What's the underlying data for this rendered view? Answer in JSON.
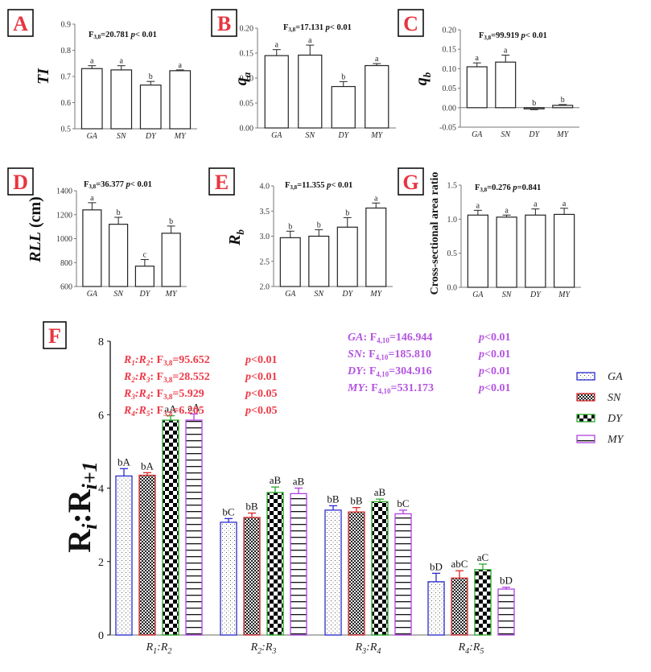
{
  "chart_data": [
    {
      "id": "A",
      "type": "bar",
      "panel_label": "A",
      "title": "F3,8=20.781  p<0.01",
      "stat": {
        "F_sub": "3,8",
        "F_value": "20.781",
        "p": "p< 0.01"
      },
      "ylabel": "TI",
      "ylabel_style": "italic",
      "categories": [
        "GA",
        "SN",
        "DY",
        "MY"
      ],
      "values": [
        0.73,
        0.725,
        0.667,
        0.722
      ],
      "errors": [
        0.011,
        0.016,
        0.014,
        0.003
      ],
      "letters": [
        "a",
        "a",
        "b",
        "a"
      ],
      "ylim": [
        0.5,
        0.9
      ],
      "yticks": [
        0.5,
        0.6,
        0.7,
        0.8,
        0.9
      ],
      "ytick_labels": [
        "0.5",
        "0.6",
        "0.7",
        "0.8",
        "0.9"
      ]
    },
    {
      "id": "B",
      "type": "bar",
      "panel_label": "B",
      "title": "F3,8=17.131  p<0.01",
      "stat": {
        "F_sub": "3,8",
        "F_value": "17.131",
        "p": "p< 0.01"
      },
      "ylabel": "q",
      "ylabel_sub": "a",
      "categories": [
        "GA",
        "SN",
        "DY",
        "MY"
      ],
      "values": [
        0.145,
        0.146,
        0.083,
        0.125
      ],
      "errors": [
        0.012,
        0.02,
        0.01,
        0.004
      ],
      "letters": [
        "a",
        "a",
        "b",
        "a"
      ],
      "ylim": [
        0.0,
        0.2
      ],
      "yticks": [
        0.0,
        0.05,
        0.1,
        0.15,
        0.2
      ],
      "ytick_labels": [
        "0.00",
        "0.05",
        "0.10",
        "0.15",
        "0.20"
      ]
    },
    {
      "id": "C",
      "type": "bar",
      "panel_label": "C",
      "title": "F3,8=99.919  p<0.01",
      "stat": {
        "F_sub": "3,8",
        "F_value": "99.919",
        "p": "p< 0.01"
      },
      "ylabel": "q",
      "ylabel_sub": "b",
      "categories": [
        "GA",
        "SN",
        "DY",
        "MY"
      ],
      "values": [
        0.105,
        0.117,
        -0.003,
        0.006
      ],
      "errors": [
        0.01,
        0.018,
        0.002,
        0.002
      ],
      "letters": [
        "a",
        "a",
        "b",
        "b"
      ],
      "ylim": [
        -0.05,
        0.2
      ],
      "yticks": [
        -0.05,
        0.0,
        0.05,
        0.1,
        0.15,
        0.2
      ],
      "ytick_labels": [
        "-0.05",
        "0.00",
        "0.05",
        "0.10",
        "0.15",
        "0.20"
      ]
    },
    {
      "id": "D",
      "type": "bar",
      "panel_label": "D",
      "title": "F3,8=36.377  p<0.01",
      "stat": {
        "F_sub": "3,8",
        "F_value": "36.377",
        "p": "p< 0.01"
      },
      "ylabel": "RLL (cm)",
      "categories": [
        "GA",
        "SN",
        "DY",
        "MY"
      ],
      "values": [
        1240,
        1120,
        770,
        1045
      ],
      "errors": [
        60,
        58,
        55,
        60
      ],
      "letters": [
        "a",
        "b",
        "c",
        "b"
      ],
      "ylim": [
        600,
        1400
      ],
      "yticks": [
        600,
        800,
        1000,
        1200,
        1400
      ],
      "ytick_labels": [
        "600",
        "800",
        "1000",
        "1200",
        "1400"
      ]
    },
    {
      "id": "E",
      "type": "bar",
      "panel_label": "E",
      "title": "F3,8=11.355  p<0.01",
      "stat": {
        "F_sub": "3,8",
        "F_value": "11.355",
        "p": "p< 0.01"
      },
      "ylabel": "R",
      "ylabel_sub": "b",
      "categories": [
        "GA",
        "SN",
        "DY",
        "MY"
      ],
      "values": [
        2.97,
        3.0,
        3.18,
        3.56
      ],
      "errors": [
        0.13,
        0.13,
        0.19,
        0.1
      ],
      "letters": [
        "b",
        "b",
        "b",
        "a"
      ],
      "ylim": [
        2.0,
        4.0
      ],
      "yticks": [
        2.0,
        2.5,
        3.0,
        3.5,
        4.0
      ],
      "ytick_labels": [
        "2.0",
        "2.5",
        "3.0",
        "3.5",
        "4.0"
      ]
    },
    {
      "id": "G",
      "type": "bar",
      "panel_label": "G",
      "title": "F3,8=0.276  p=0.841",
      "stat": {
        "F_sub": "3,8",
        "F_value": "0.276",
        "p": "p=0.841"
      },
      "ylabel": "Cross-sectional area ratio",
      "categories": [
        "GA",
        "SN",
        "DY",
        "MY"
      ],
      "values": [
        1.06,
        1.03,
        1.06,
        1.07
      ],
      "errors": [
        0.07,
        0.03,
        0.09,
        0.09
      ],
      "letters": [
        "a",
        "a",
        "a",
        "a"
      ],
      "ylim": [
        0.0,
        1.5
      ],
      "yticks": [
        0.0,
        0.5,
        1.0,
        1.5
      ],
      "ytick_labels": [
        "0.0",
        "0.5",
        "1.0",
        "1.5"
      ]
    },
    {
      "id": "F",
      "type": "bar",
      "panel_label": "F",
      "ylabel": "Ri:Ri+1",
      "ylim": [
        0,
        8
      ],
      "yticks": [
        0,
        2,
        4,
        6,
        8
      ],
      "ytick_labels": [
        "0",
        "2",
        "4",
        "6",
        "8"
      ],
      "categories": [
        {
          "a": "R",
          "a_sub": "1",
          "b": "R",
          "b_sub": "2",
          "text": "R1:R2"
        },
        {
          "a": "R",
          "a_sub": "2",
          "b": "R",
          "b_sub": "3",
          "text": "R2:R3"
        },
        {
          "a": "R",
          "a_sub": "3",
          "b": "R",
          "b_sub": "4",
          "text": "R3:R4"
        },
        {
          "a": "R",
          "a_sub": "4",
          "b": "R",
          "b_sub": "5",
          "text": "R4:R5"
        }
      ],
      "series": [
        {
          "name": "GA",
          "color": "#2a2ad0",
          "pattern": "dots",
          "values": [
            4.33,
            3.07,
            3.4,
            1.45
          ],
          "errors": [
            0.2,
            0.1,
            0.12,
            0.23
          ],
          "letters": [
            "bA",
            "bC",
            "bB",
            "bD"
          ]
        },
        {
          "name": "SN",
          "color": "#d42a2a",
          "pattern": "fine-check",
          "values": [
            4.35,
            3.2,
            3.35,
            1.55
          ],
          "errors": [
            0.07,
            0.12,
            0.12,
            0.2
          ],
          "letters": [
            "bA",
            "bB",
            "bB",
            "abC"
          ]
        },
        {
          "name": "DY",
          "color": "#2aa82a",
          "pattern": "checker",
          "values": [
            5.85,
            3.88,
            3.63,
            1.78
          ],
          "errors": [
            0.12,
            0.15,
            0.07,
            0.15
          ],
          "letters": [
            "aA",
            "aB",
            "aB",
            "aC"
          ]
        },
        {
          "name": "MY",
          "color": "#b040e0",
          "pattern": "hlines",
          "values": [
            5.85,
            3.85,
            3.3,
            1.25
          ],
          "errors": [
            0.17,
            0.15,
            0.1,
            0.05
          ],
          "letters": [
            "aA",
            "aB",
            "bC",
            "bD"
          ]
        }
      ],
      "annotations_left": [
        {
          "lhs_a": "R",
          "lhs_a_sub": "1",
          "lhs_b": "R",
          "lhs_b_sub": "2",
          "F_sub": "3,8",
          "F_value": "95.652",
          "p": "p<0.01"
        },
        {
          "lhs_a": "R",
          "lhs_a_sub": "2",
          "lhs_b": "R",
          "lhs_b_sub": "3",
          "F_sub": "3,8",
          "F_value": "28.552",
          "p": "p<0.01"
        },
        {
          "lhs_a": "R",
          "lhs_a_sub": "3",
          "lhs_b": "R",
          "lhs_b_sub": "4",
          "F_sub": "3,8",
          "F_value": "5.929",
          "p": "p<0.05"
        },
        {
          "lhs_a": "R",
          "lhs_a_sub": "4",
          "lhs_b": "R",
          "lhs_b_sub": "5",
          "F_sub": "3,8",
          "F_value": "6.205",
          "p": "p<0.05"
        }
      ],
      "annotations_right": [
        {
          "group": "GA",
          "F_sub": "4,10",
          "F_value": "146.944",
          "p": "p<0.01"
        },
        {
          "group": "SN",
          "F_sub": "4,10",
          "F_value": "185.810",
          "p": "p<0.01"
        },
        {
          "group": "DY",
          "F_sub": "4,10",
          "F_value": "304.916",
          "p": "p<0.01"
        },
        {
          "group": "MY",
          "F_sub": "4,10",
          "F_value": "531.173",
          "p": "p<0.01"
        }
      ],
      "annotation_colors": {
        "left": "#ee3a47",
        "right": "#b455e0"
      },
      "legend": [
        "GA",
        "SN",
        "DY",
        "MY"
      ],
      "legend_position": "right"
    }
  ],
  "colors": {
    "panel_letter": "#e8353f",
    "axis": "#666666",
    "text": "#111111"
  }
}
